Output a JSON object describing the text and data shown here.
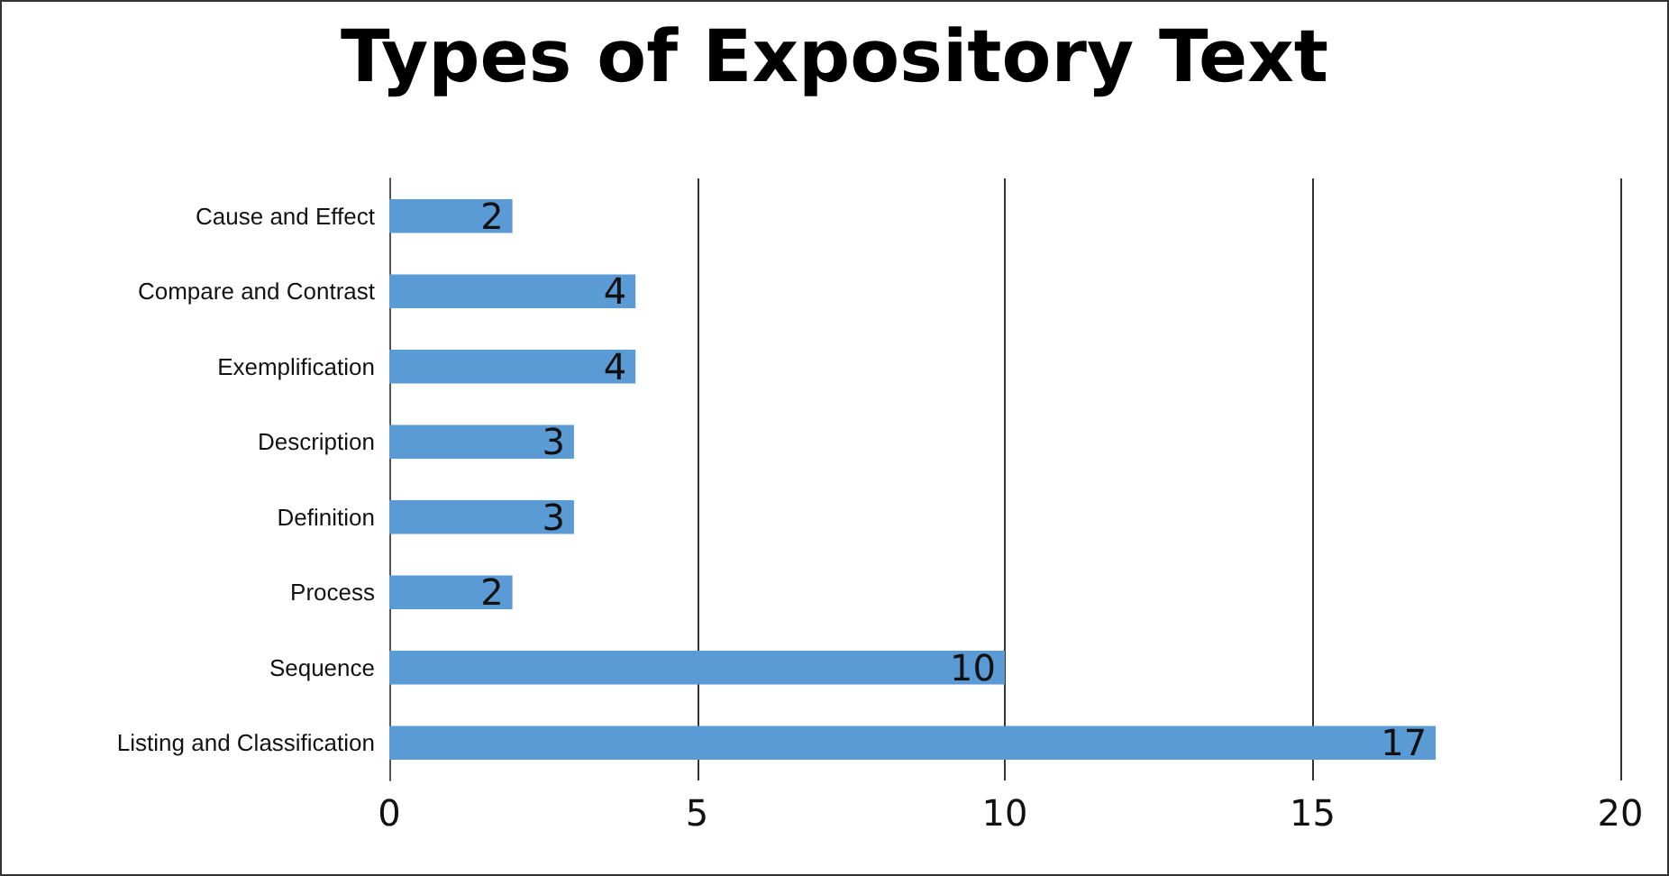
{
  "chart_data": {
    "type": "bar",
    "title": "Types of Expository Text",
    "orientation": "horizontal",
    "categories": [
      "Cause and Effect",
      "Compare and Contrast",
      "Exemplification",
      "Description",
      "Definition",
      "Process",
      "Sequence",
      "Listing and Classification"
    ],
    "values": [
      2,
      4,
      4,
      3,
      3,
      2,
      10,
      17
    ],
    "color": "#5b9bd5",
    "xlim": [
      0,
      20
    ],
    "xticks": [
      0,
      5,
      10,
      15,
      20
    ],
    "grid": "x",
    "data_labels": true
  }
}
